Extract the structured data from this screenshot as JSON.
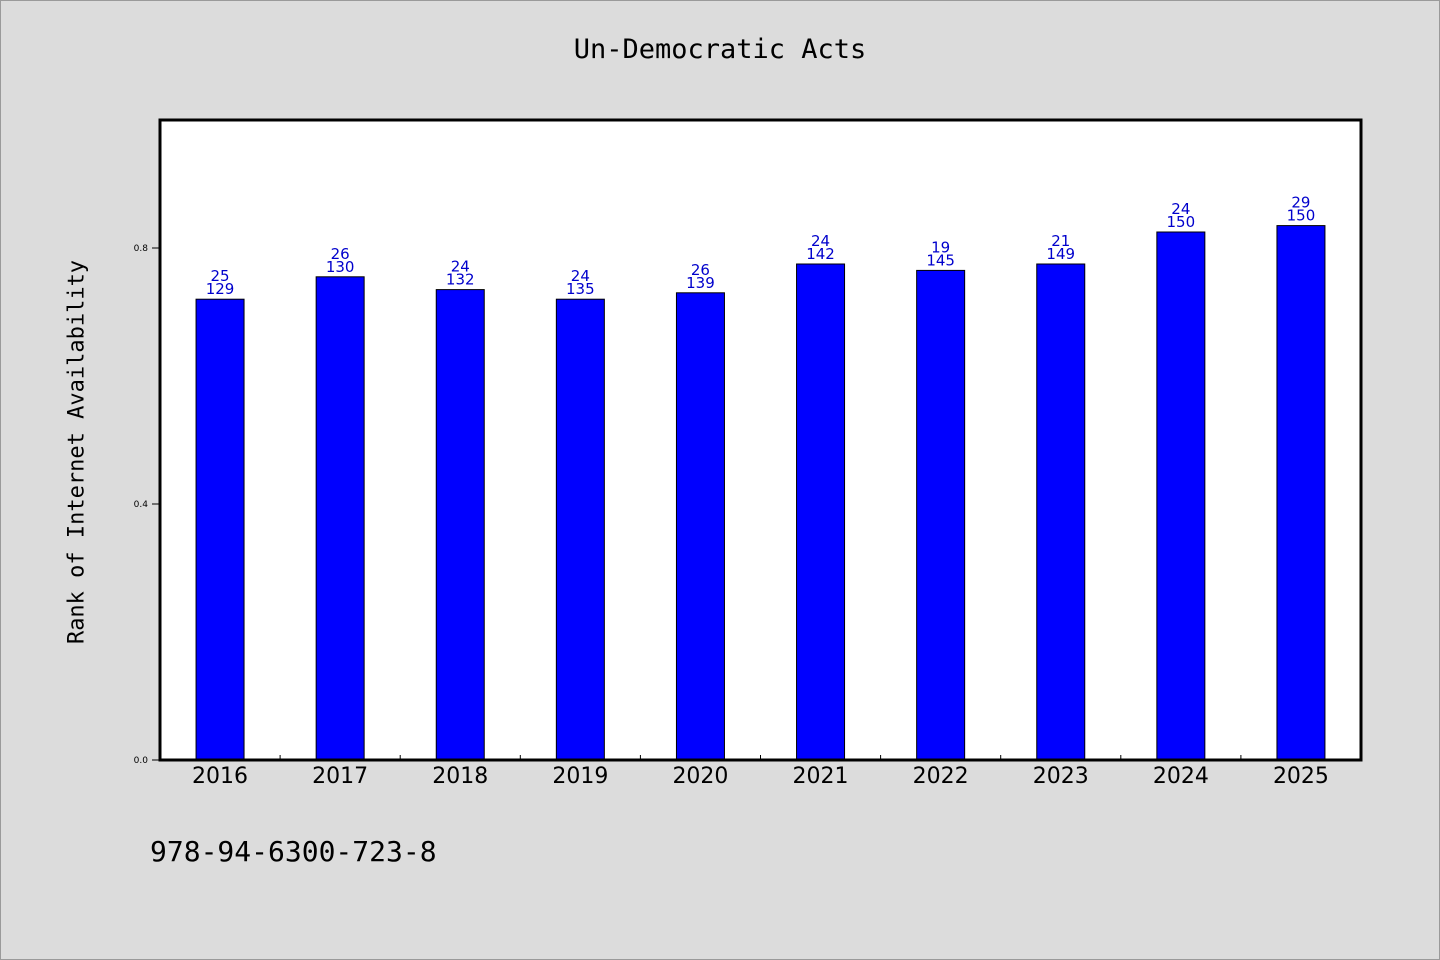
{
  "chart_data": {
    "type": "bar",
    "title": "Un-Democratic Acts",
    "xlabel": "",
    "ylabel": "Rank of Internet Availability",
    "ylim": [
      0.0,
      1.0
    ],
    "yticks": [
      0.0,
      0.4,
      0.8
    ],
    "ytick_labels": [
      "0.0",
      "0.4",
      "0.8"
    ],
    "grid": false,
    "categories": [
      "2016",
      "2017",
      "2018",
      "2019",
      "2020",
      "2021",
      "2022",
      "2023",
      "2024",
      "2025"
    ],
    "values": [
      0.72,
      0.755,
      0.735,
      0.72,
      0.73,
      0.775,
      0.765,
      0.775,
      0.825,
      0.835
    ],
    "bar_labels_top": [
      "25",
      "26",
      "24",
      "24",
      "26",
      "24",
      "19",
      "21",
      "24",
      "29"
    ],
    "bar_labels_bottom": [
      "129",
      "130",
      "132",
      "135",
      "139",
      "142",
      "145",
      "149",
      "150",
      "150"
    ],
    "colors": {
      "bar": "#0000ff",
      "bar_label": "#0000cc",
      "axis": "#000000",
      "plot_bg": "#ffffff",
      "page_bg": "#dcdcdc"
    }
  },
  "footer": {
    "isbn": "978-94-6300-723-8"
  }
}
